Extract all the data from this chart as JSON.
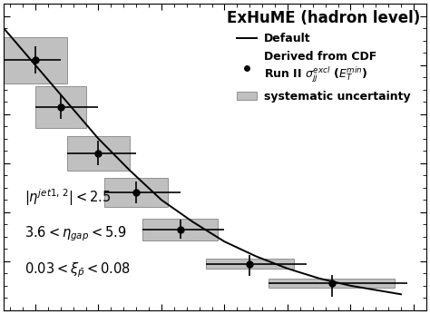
{
  "title": "ExHuME (hadron level)",
  "points_x": [
    10,
    14,
    20,
    26,
    33,
    44,
    57
  ],
  "points_y": [
    10.2,
    8.3,
    6.4,
    4.8,
    3.3,
    1.9,
    1.1
  ],
  "xerr_low": [
    5,
    4,
    5,
    5,
    6,
    7,
    10
  ],
  "xerr_high": [
    4,
    6,
    6,
    7,
    7,
    9,
    12
  ],
  "yerr_low": [
    0.55,
    0.5,
    0.5,
    0.45,
    0.4,
    0.5,
    0.55
  ],
  "yerr_high": [
    0.55,
    0.5,
    0.5,
    0.45,
    0.4,
    0.35,
    0.35
  ],
  "sys_xc": [
    10,
    14,
    20,
    26,
    33,
    44,
    57
  ],
  "sys_half_w": [
    5,
    4,
    5,
    5,
    6,
    7,
    10
  ],
  "sys_yc": [
    10.2,
    8.3,
    6.4,
    4.8,
    3.3,
    1.9,
    1.1
  ],
  "sys_half_h": [
    0.95,
    0.85,
    0.7,
    0.6,
    0.45,
    0.2,
    0.18
  ],
  "line_x": [
    5,
    10,
    15,
    20,
    25,
    30,
    35,
    40,
    45,
    50,
    55,
    60,
    68
  ],
  "line_y": [
    11.5,
    10.0,
    8.5,
    7.0,
    5.7,
    4.5,
    3.6,
    2.8,
    2.2,
    1.7,
    1.3,
    1.0,
    0.65
  ],
  "xlim": [
    5,
    72
  ],
  "ylim": [
    0.0,
    12.5
  ],
  "label1": "Default",
  "label2_line1": "Derived from CDF",
  "label2_line2": "Run II $\\sigma_{jj}^{excl}$ ($E_T^{min}$)",
  "label3": "systematic uncertainty",
  "annotation1": "$|\\eta^{jet1,\\,2}| < 2.5$",
  "annotation2": "$3.6 < \\eta_{gap} < 5.9$",
  "annotation3": "$0.03 < \\xi_{\\bar{p}} < 0.08$",
  "sys_color": "#c0c0c0",
  "sys_edge_color": "#909090",
  "point_color": "black",
  "line_color": "black",
  "bg_color": "white",
  "title_fontsize": 12,
  "legend_fontsize": 9,
  "annotation_fontsize": 10.5
}
